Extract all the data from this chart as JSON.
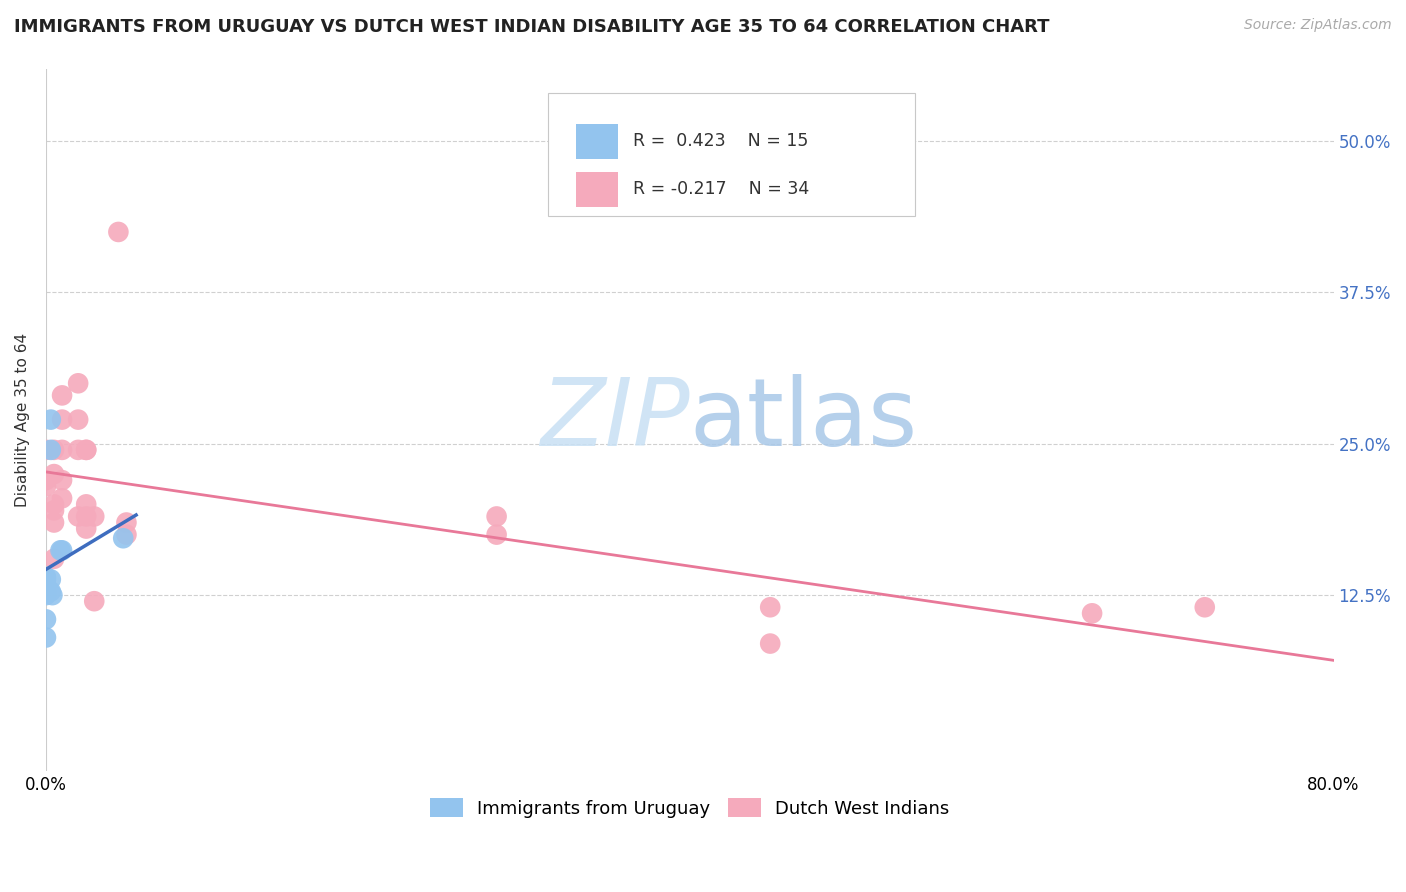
{
  "title": "IMMIGRANTS FROM URUGUAY VS DUTCH WEST INDIAN DISABILITY AGE 35 TO 64 CORRELATION CHART",
  "source": "Source: ZipAtlas.com",
  "ylabel": "Disability Age 35 to 64",
  "ytick_values": [
    0.125,
    0.25,
    0.375,
    0.5
  ],
  "ytick_labels": [
    "12.5%",
    "25.0%",
    "37.5%",
    "50.0%"
  ],
  "xlim": [
    0.0,
    0.8
  ],
  "ylim": [
    -0.02,
    0.56
  ],
  "watermark_zip": "ZIP",
  "watermark_atlas": "atlas",
  "uruguay_color": "#93C4EE",
  "dutch_color": "#F5AABC",
  "uruguay_line_color": "#3E6DBF",
  "dutch_line_color": "#E87898",
  "uruguay_x": [
    0.0,
    0.0,
    0.0,
    0.0,
    0.0,
    0.0,
    0.0,
    0.003,
    0.003,
    0.003,
    0.003,
    0.004,
    0.009,
    0.01,
    0.048
  ],
  "uruguay_y": [
    0.125,
    0.128,
    0.133,
    0.138,
    0.14,
    0.105,
    0.09,
    0.27,
    0.245,
    0.138,
    0.128,
    0.125,
    0.162,
    0.162,
    0.172
  ],
  "dutch_x": [
    0.0,
    0.0,
    0.0,
    0.005,
    0.005,
    0.005,
    0.005,
    0.005,
    0.005,
    0.01,
    0.01,
    0.01,
    0.01,
    0.01,
    0.02,
    0.02,
    0.02,
    0.02,
    0.025,
    0.025,
    0.025,
    0.025,
    0.025,
    0.03,
    0.03,
    0.045,
    0.05,
    0.05,
    0.28,
    0.28,
    0.45,
    0.45,
    0.65,
    0.72
  ],
  "dutch_y": [
    0.215,
    0.22,
    0.245,
    0.245,
    0.225,
    0.2,
    0.195,
    0.185,
    0.155,
    0.29,
    0.27,
    0.245,
    0.22,
    0.205,
    0.3,
    0.27,
    0.245,
    0.19,
    0.245,
    0.245,
    0.2,
    0.19,
    0.18,
    0.12,
    0.19,
    0.425,
    0.185,
    0.175,
    0.19,
    0.175,
    0.115,
    0.085,
    0.11,
    0.115
  ],
  "title_fontsize": 13,
  "source_fontsize": 10,
  "axis_label_fontsize": 11,
  "tick_fontsize": 12,
  "legend_fontsize": 13,
  "watermark_fontsize_zip": 72,
  "watermark_fontsize_atlas": 72
}
